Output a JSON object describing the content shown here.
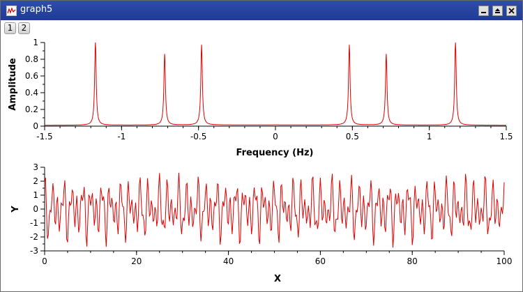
{
  "window": {
    "title": "graph5"
  },
  "tabs": [
    {
      "label": "1"
    },
    {
      "label": "2"
    }
  ],
  "colors": {
    "trace": "#dd0000",
    "titlebar": "#2345a0"
  },
  "chart_data": [
    {
      "type": "line",
      "xlabel": "Frequency (Hz)",
      "ylabel": "Amplitude",
      "xlim": [
        -1.5,
        1.5
      ],
      "ylim": [
        0,
        1
      ],
      "xticks": [
        "-1.5",
        "-1",
        "-0.5",
        "0",
        "0.5",
        "1",
        "1.5"
      ],
      "yticks": [
        "0",
        "0.2",
        "0.4",
        "0.6",
        "0.8",
        "1"
      ],
      "peaks": [
        {
          "x": -1.17,
          "y": 1.0
        },
        {
          "x": -0.72,
          "y": 0.85
        },
        {
          "x": -0.48,
          "y": 0.96
        },
        {
          "x": 0.48,
          "y": 0.96
        },
        {
          "x": 0.72,
          "y": 0.85
        },
        {
          "x": 1.17,
          "y": 1.0
        }
      ],
      "baseline": 0.015
    },
    {
      "type": "line",
      "xlabel": "X",
      "ylabel": "Y",
      "xlim": [
        0,
        100
      ],
      "ylim": [
        -3,
        3
      ],
      "xticks": [
        "0",
        "20",
        "40",
        "60",
        "80",
        "100"
      ],
      "yticks": [
        "-3",
        "-2",
        "-1",
        "0",
        "1",
        "2",
        "3"
      ],
      "components": [
        {
          "freq": 1.17,
          "amp": 1.0
        },
        {
          "freq": 0.72,
          "amp": 0.85
        },
        {
          "freq": 0.48,
          "amp": 0.96
        }
      ],
      "samples": 500
    }
  ]
}
